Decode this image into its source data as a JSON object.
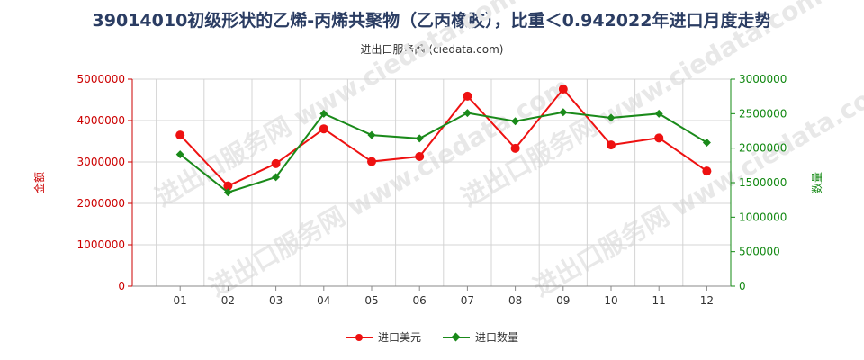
{
  "title": "39014010初级形状的乙烯-丙烯共聚物（乙丙橡胶），比重＜0.942022年进口月度走势",
  "subtitle": "进出口服务网 (ciedata.com)",
  "watermark": "进出口服务网 www.ciedata.com",
  "colors": {
    "left_series": "#ee1111",
    "right_series": "#1a8a1a",
    "left_axis": "#cc0000",
    "right_axis": "#118811"
  },
  "chart_data": {
    "type": "line",
    "categories": [
      "01",
      "02",
      "03",
      "04",
      "05",
      "06",
      "07",
      "08",
      "09",
      "10",
      "11",
      "12"
    ],
    "ylabel": "金额",
    "y2label": "数量",
    "ylim": [
      0,
      5000000
    ],
    "y2lim": [
      0,
      3000000
    ],
    "yticks": [
      "0",
      "1000000",
      "2000000",
      "3000000",
      "4000000",
      "5000000"
    ],
    "y2ticks": [
      "0",
      "500000",
      "1000000",
      "1500000",
      "2000000",
      "2500000",
      "3000000"
    ],
    "grid": true,
    "legend_position": "bottom",
    "series": [
      {
        "name": "进口美元",
        "axis": "left",
        "values": [
          3650000,
          2420000,
          2960000,
          3800000,
          3010000,
          3130000,
          4590000,
          3330000,
          4760000,
          3410000,
          3580000,
          2780000
        ]
      },
      {
        "name": "进口数量",
        "axis": "right",
        "values": [
          1910000,
          1360000,
          1580000,
          2500000,
          2190000,
          2140000,
          2510000,
          2390000,
          2520000,
          2440000,
          2500000,
          2080000
        ]
      }
    ]
  }
}
